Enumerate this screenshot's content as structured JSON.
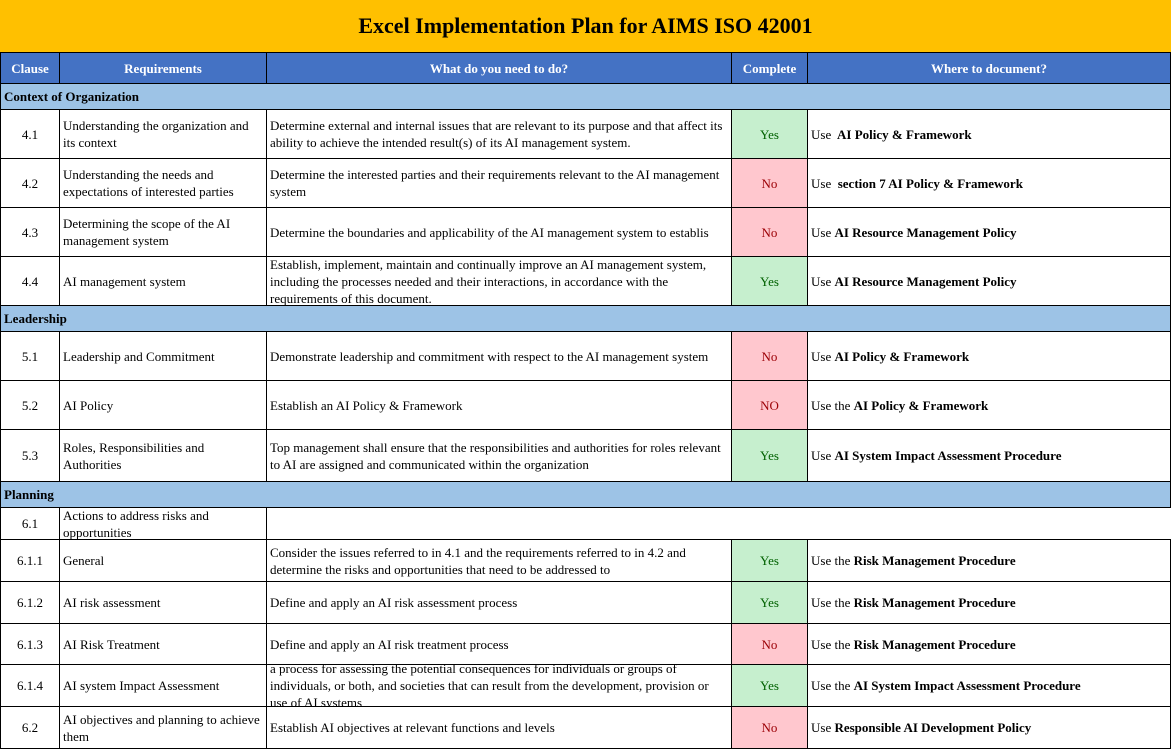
{
  "title": "Excel Implementation Plan for AIMS ISO 42001",
  "headers": [
    "Clause",
    "Requirements",
    "What do you need to do?",
    "Complete",
    "Where to document?"
  ],
  "colors": {
    "title_bg": "#FFC000",
    "header_bg": "#4472C4",
    "section_bg": "#9DC3E6",
    "yes_bg": "#C6EFCE",
    "yes_text": "#006100",
    "no_bg": "#FFC7CE",
    "no_text": "#9C0006"
  },
  "sections": [
    {
      "name": "Context of Organization",
      "rows": [
        {
          "clause": "4.1",
          "requirement": "Understanding the organization and its context",
          "action": "Determine external and internal issues that are relevant to its purpose and that affect its ability to achieve the intended result(s) of its AI management system.",
          "complete": "Yes",
          "doc_prefix": "Use ",
          "doc_bold": " AI Policy & Framework"
        },
        {
          "clause": "4.2",
          "requirement": "Understanding the needs and expectations of interested parties",
          "action": "Determine the interested parties and their requirements relevant to the AI management system",
          "complete": "No",
          "doc_prefix": "Use ",
          "doc_bold": " section 7 AI Policy & Framework"
        },
        {
          "clause": "4.3",
          "requirement": "Determining the scope of the AI management system",
          "action": "Determine the boundaries and applicability of the AI management system to establis",
          "complete": "No",
          "doc_prefix": "Use ",
          "doc_bold": "AI Resource Management Policy"
        },
        {
          "clause": "4.4",
          "requirement": "AI management system",
          "action": "Establish, implement, maintain and continually improve an AI management system, including the processes needed and their interactions, in accordance with the requirements of this document.",
          "complete": "Yes",
          "doc_prefix": "Use ",
          "doc_bold": "AI Resource Management Policy"
        }
      ]
    },
    {
      "name": "Leadership",
      "rows": [
        {
          "clause": "5.1",
          "requirement": "Leadership and Commitment",
          "action": "Demonstrate leadership and commitment with respect to the AI management system",
          "complete": "No",
          "doc_prefix": "Use ",
          "doc_bold": "AI Policy & Framework"
        },
        {
          "clause": "5.2",
          "requirement": "AI Policy",
          "action": "Establish an AI Policy & Framework",
          "complete": "NO",
          "doc_prefix": "Use the ",
          "doc_bold": "AI Policy & Framework"
        },
        {
          "clause": "5.3",
          "requirement": "Roles, Responsibilities and Authorities",
          "action": "Top management shall ensure that the responsibilities and authorities for roles relevant to AI are assigned and communicated within the organization",
          "complete": "Yes",
          "doc_prefix": "Use ",
          "doc_bold": "AI System Impact Assessment Procedure"
        }
      ]
    },
    {
      "name": "Planning",
      "rows": [
        {
          "clause": "6.1",
          "requirement": "Actions to address risks and opportunities"
        },
        {
          "clause": "6.1.1",
          "requirement": "General",
          "action": "Consider the issues referred to in 4.1 and the requirements referred to in 4.2 and determine the risks and opportunities that need to be addressed to",
          "complete": "Yes",
          "doc_prefix": "Use the ",
          "doc_bold": "Risk Management Procedure"
        },
        {
          "clause": "6.1.2",
          "requirement": "AI risk assessment",
          "action": "Define and apply an AI risk assessment process",
          "complete": "Yes",
          "doc_prefix": "Use the ",
          "doc_bold": "Risk Management Procedure"
        },
        {
          "clause": "6.1.3",
          "requirement": "AI Risk Treatment",
          "action": "Define and apply an AI risk treatment process",
          "complete": "No",
          "doc_prefix": "Use the ",
          "doc_bold": "Risk Management Procedure"
        },
        {
          "clause": "6.1.4",
          "requirement": "AI system Impact Assessment",
          "action": "a process for assessing the potential consequences for individuals or groups of individuals, or both, and societies that can result from the development, provision or use of AI systems",
          "complete": "Yes",
          "doc_prefix": "Use the ",
          "doc_bold": "AI System Impact Assessment Procedure"
        },
        {
          "clause": "6.2",
          "requirement": "AI objectives and planning to achieve them",
          "action": "Establish AI objectives at relevant functions and levels",
          "complete": "No",
          "doc_prefix": "Use ",
          "doc_bold": "Responsible AI Development Policy"
        }
      ]
    }
  ]
}
